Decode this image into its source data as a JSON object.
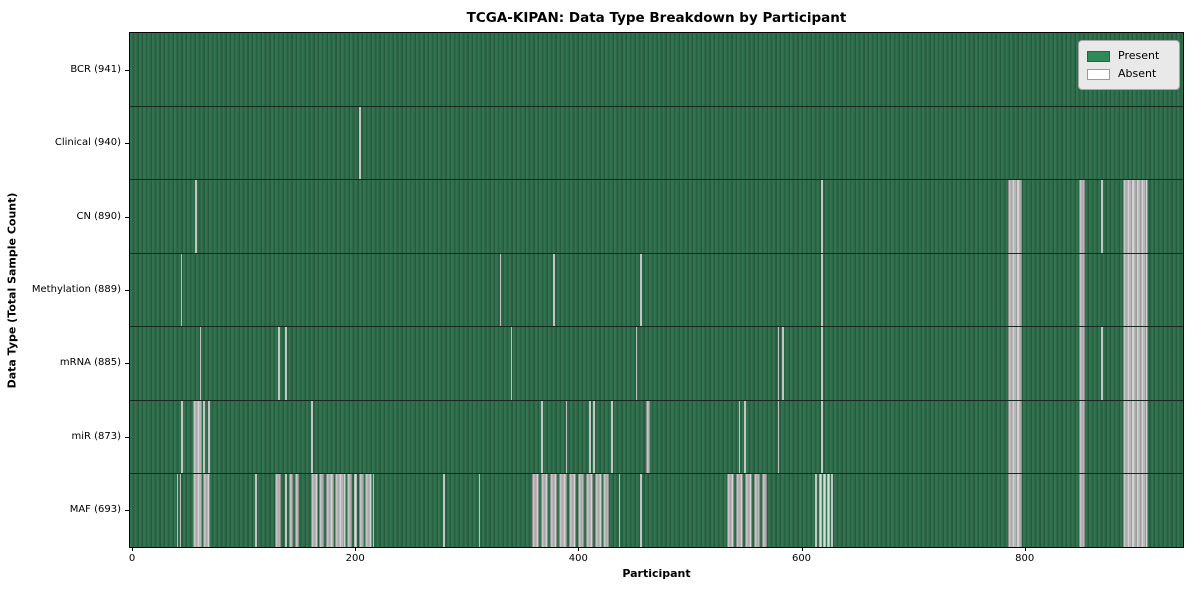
{
  "chart_data": {
    "type": "heatmap",
    "title": "TCGA-KIPAN: Data Type Breakdown by Participant",
    "xlabel": "Participant",
    "ylabel": "Data Type (Total Sample Count)",
    "x_ticks": [
      0,
      200,
      400,
      600,
      800
    ],
    "x_max": 941,
    "grid": false,
    "legend_position": "upper right",
    "legend": [
      {
        "label": "Present",
        "color": "#2e8b57"
      },
      {
        "label": "Absent",
        "color": "#ffffff"
      }
    ],
    "colors": {
      "present_fill": "#2e8b57",
      "present_render_dark": "#2c6747",
      "absent_fill": "#b5b5b5",
      "row_divider": "#17271d",
      "legend_bg": "#e9e9e9"
    },
    "rows": [
      {
        "label": "BCR (941)",
        "data_type": "BCR",
        "sample_count": 941,
        "absent": []
      },
      {
        "label": "Clinical (940)",
        "data_type": "Clinical",
        "sample_count": 940,
        "absent": [
          [
            203.5,
            205
          ]
        ]
      },
      {
        "label": "CN (890)",
        "data_type": "CN",
        "sample_count": 890,
        "absent": [
          [
            56.5,
            58
          ],
          [
            617.5,
            619
          ],
          [
            785,
            797.5
          ],
          [
            849,
            854.5
          ],
          [
            868.5,
            870
          ],
          [
            888,
            910.5
          ]
        ]
      },
      {
        "label": "Methylation (889)",
        "data_type": "Methylation",
        "sample_count": 889,
        "absent": [
          [
            43.5,
            45
          ],
          [
            329.5,
            331
          ],
          [
            377.5,
            379
          ],
          [
            455.5,
            457
          ],
          [
            617.5,
            619
          ],
          [
            785,
            797.5
          ],
          [
            849,
            854.5
          ],
          [
            888,
            910.5
          ]
        ]
      },
      {
        "label": "mRNA (885)",
        "data_type": "mRNA",
        "sample_count": 885,
        "absent": [
          [
            60.5,
            62
          ],
          [
            131,
            132.5
          ],
          [
            137.5,
            139
          ],
          [
            339.5,
            341
          ],
          [
            451.5,
            453
          ],
          [
            578.5,
            580
          ],
          [
            582.5,
            584
          ],
          [
            617.5,
            619
          ],
          [
            785,
            797.5
          ],
          [
            849,
            854.5
          ],
          [
            868.5,
            870
          ],
          [
            888,
            910.5
          ]
        ]
      },
      {
        "label": "miR (873)",
        "data_type": "miR",
        "sample_count": 873,
        "absent": [
          [
            44,
            45.5
          ],
          [
            54.5,
            62.5
          ],
          [
            64,
            65.5
          ],
          [
            68.5,
            70
          ],
          [
            160.5,
            162
          ],
          [
            366.5,
            368
          ],
          [
            388.5,
            390
          ],
          [
            409.5,
            411
          ],
          [
            413.5,
            415
          ],
          [
            429.5,
            431
          ],
          [
            460.5,
            464
          ],
          [
            543.5,
            545
          ],
          [
            548.5,
            550
          ],
          [
            578.5,
            580
          ],
          [
            617.5,
            619
          ],
          [
            785,
            797.5
          ],
          [
            849,
            854.5
          ],
          [
            888,
            910.5
          ]
        ]
      },
      {
        "label": "MAF (693)",
        "data_type": "MAF",
        "sample_count": 693,
        "absent": [
          [
            40,
            41.3
          ],
          [
            42.7,
            44
          ],
          [
            54.5,
            62.5
          ],
          [
            64,
            70
          ],
          [
            110.5,
            112
          ],
          [
            128,
            134
          ],
          [
            137.5,
            139
          ],
          [
            140.5,
            144
          ],
          [
            146,
            150
          ],
          [
            160,
            166.5
          ],
          [
            167.5,
            172.5
          ],
          [
            174,
            181
          ],
          [
            182,
            191.5
          ],
          [
            193,
            197.5
          ],
          [
            198.5,
            201.5
          ],
          [
            203.5,
            208
          ],
          [
            209,
            215
          ],
          [
            215.5,
            216.5
          ],
          [
            279,
            280.5
          ],
          [
            310.5,
            312
          ],
          [
            358,
            365
          ],
          [
            366.5,
            373
          ],
          [
            374.5,
            381
          ],
          [
            382.5,
            390
          ],
          [
            391.5,
            398
          ],
          [
            399.5,
            405.5
          ],
          [
            407,
            413
          ],
          [
            414.5,
            421
          ],
          [
            422.5,
            428
          ],
          [
            436,
            437.5
          ],
          [
            455.5,
            457
          ],
          [
            533,
            540
          ],
          [
            541.5,
            548
          ],
          [
            549.5,
            556
          ],
          [
            557.5,
            563
          ],
          [
            564.5,
            569
          ],
          [
            612,
            614
          ],
          [
            615.2,
            618
          ],
          [
            619.5,
            622
          ],
          [
            623.2,
            625.2
          ],
          [
            626,
            628.2
          ],
          [
            785,
            797.5
          ],
          [
            849,
            854.5
          ],
          [
            888,
            910.5
          ]
        ]
      }
    ]
  }
}
